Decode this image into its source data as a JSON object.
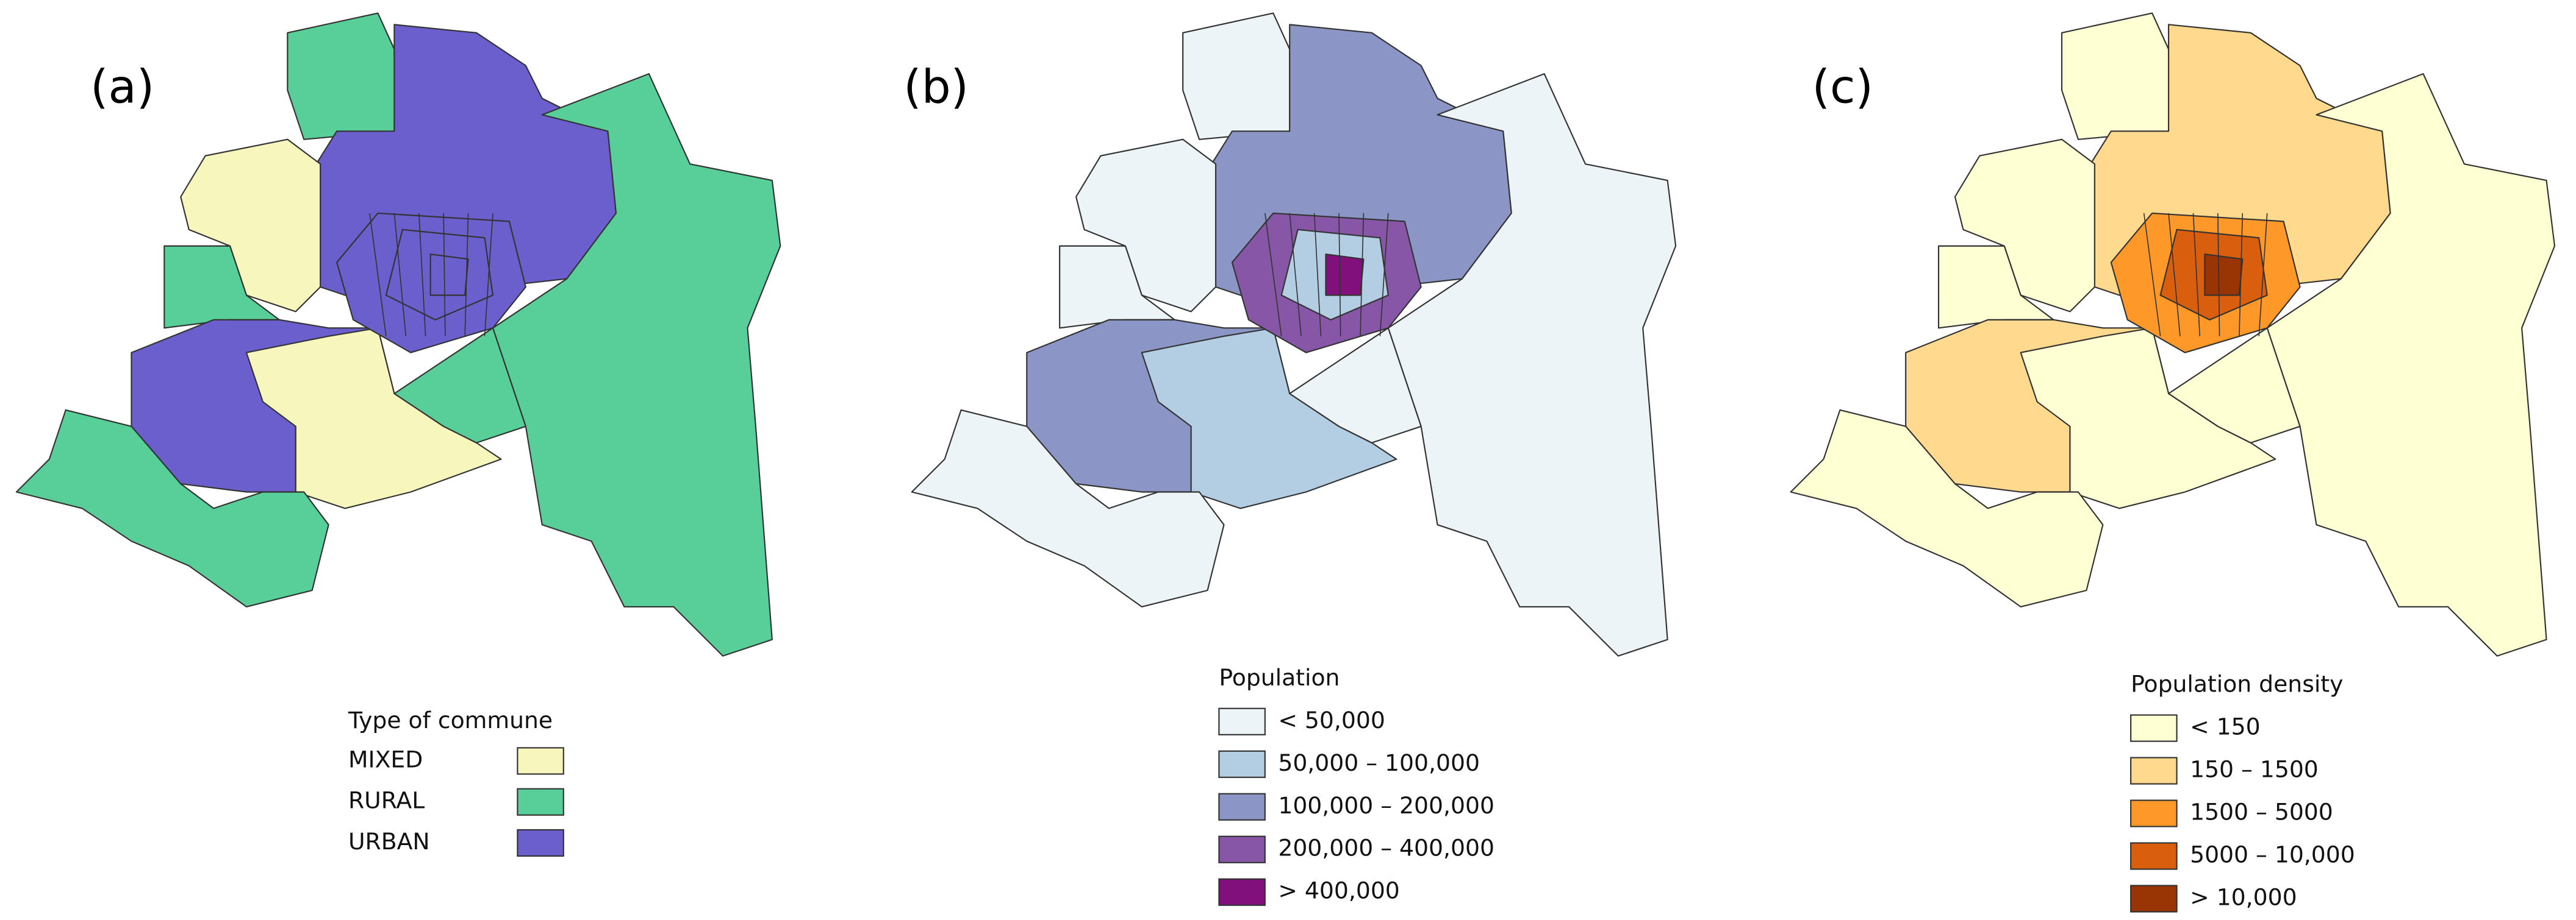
{
  "panels": [
    {
      "label": "(a)",
      "legend": {
        "title": "Type of commune",
        "items": [
          {
            "label": "MIXED",
            "color": "#f7f7bd"
          },
          {
            "label": "RURAL",
            "color": "#58cf98"
          },
          {
            "label": "URBAN",
            "color": "#6a5fcd"
          }
        ]
      }
    },
    {
      "label": "(b)",
      "legend": {
        "title": "Population",
        "items": [
          {
            "label": "< 50,000",
            "color": "#edf4f8"
          },
          {
            "label": "50,000 – 100,000",
            "color": "#b3cde3"
          },
          {
            "label": "100,000 – 200,000",
            "color": "#8c96c6"
          },
          {
            "label": "200,000 – 400,000",
            "color": "#8856a7"
          },
          {
            "label": "> 400,000",
            "color": "#810f7c"
          }
        ]
      }
    },
    {
      "label": "(c)",
      "legend": {
        "title": "Population density",
        "items": [
          {
            "label": "< 150",
            "color": "#ffffd4"
          },
          {
            "label": "150 – 1500",
            "color": "#fed98e"
          },
          {
            "label": "1500 – 5000",
            "color": "#fe9929"
          },
          {
            "label": "5000 – 10,000",
            "color": "#d95f0e"
          },
          {
            "label": "> 10,000",
            "color": "#993404"
          }
        ]
      }
    }
  ]
}
